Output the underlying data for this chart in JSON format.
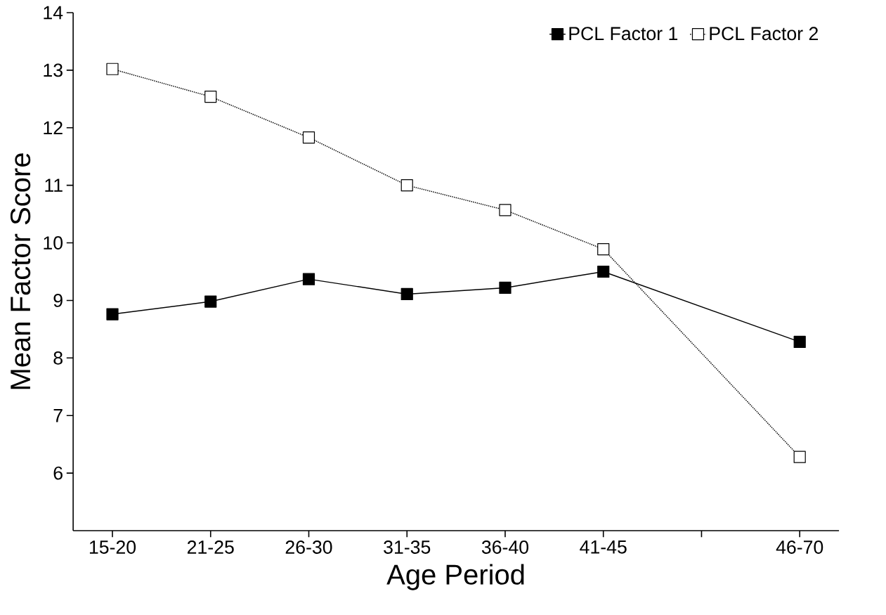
{
  "chart_data": {
    "type": "line",
    "xlabel": "Age Period",
    "ylabel": "Mean Factor Score",
    "categories": [
      "15-20",
      "21-25",
      "26-30",
      "31-35",
      "36-40",
      "41-45",
      null,
      "46-70"
    ],
    "series": [
      {
        "name": "PCL Factor 1",
        "color": "#000000",
        "line_style": "solid",
        "values": [
          8.76,
          8.98,
          9.37,
          9.11,
          9.22,
          9.5,
          null,
          8.28
        ]
      },
      {
        "name": "PCL Factor 2",
        "color": "#000000",
        "line_style": "dotted",
        "values": [
          13.02,
          12.54,
          11.83,
          11.0,
          10.57,
          9.89,
          null,
          6.28
        ]
      }
    ],
    "ylim": [
      5,
      14
    ],
    "yticks": [
      6,
      7,
      8,
      9,
      10,
      11,
      12,
      13,
      14
    ],
    "marker": "square",
    "legend": "top right",
    "grid": false
  }
}
